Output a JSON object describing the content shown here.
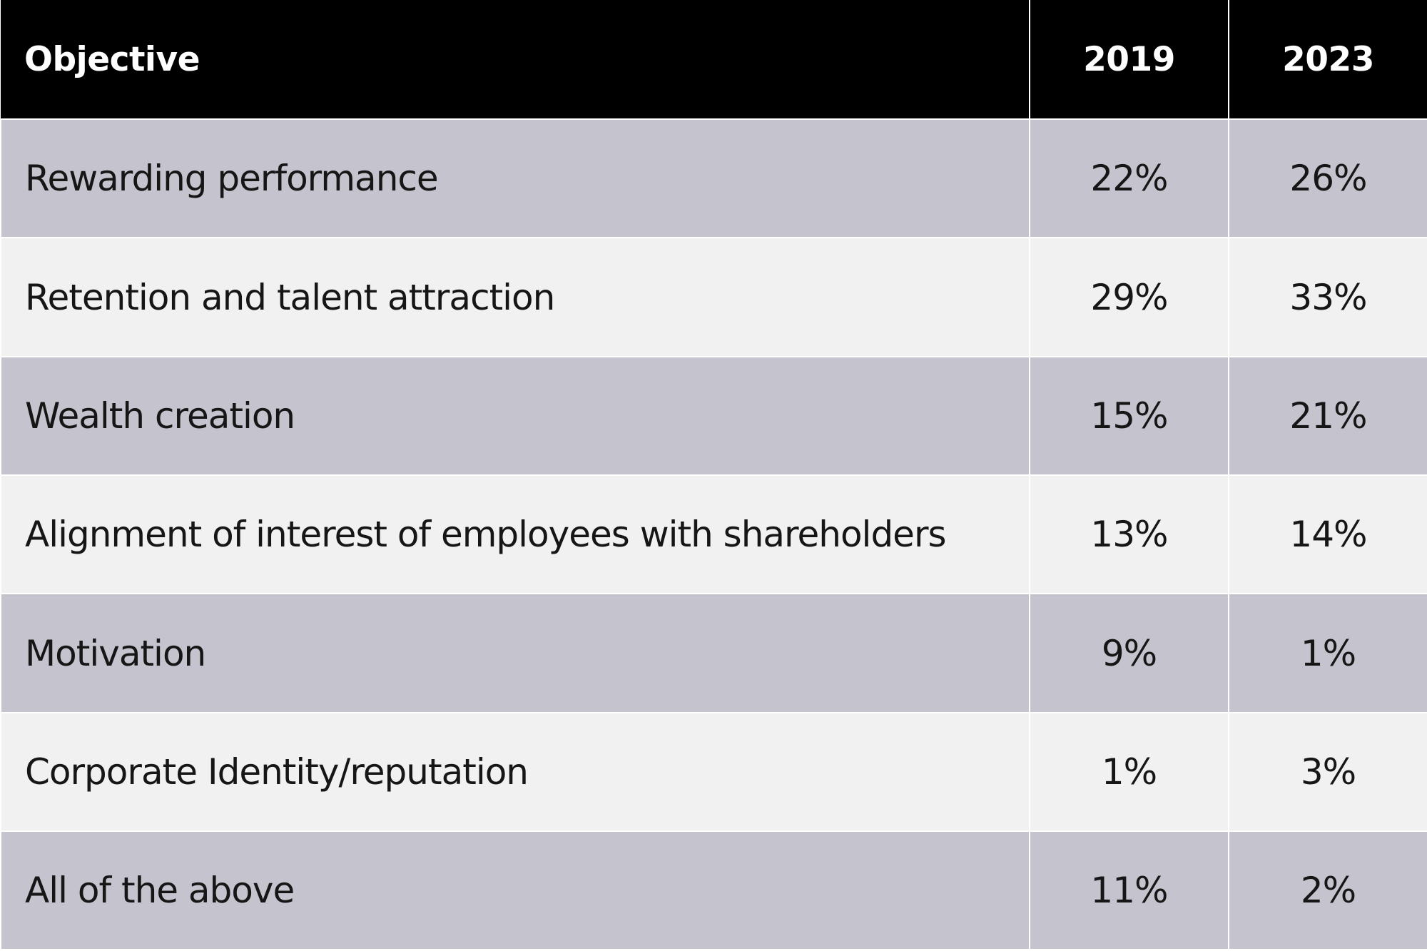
{
  "colors": {
    "header_bg": "#000000",
    "header_text": "#ffffff",
    "row_dark": "#c5c4ce",
    "row_light": "#f1f1f1",
    "body_text": "#161616",
    "divider": "#ffffff"
  },
  "table": {
    "header": {
      "objective": "Objective",
      "year_2019": "2019",
      "year_2023": "2023"
    },
    "rows": [
      {
        "objective": "Rewarding performance",
        "y2019": "22%",
        "y2023": "26%"
      },
      {
        "objective": "Retention and talent attraction",
        "y2019": "29%",
        "y2023": "33%"
      },
      {
        "objective": "Wealth creation",
        "y2019": "15%",
        "y2023": "21%"
      },
      {
        "objective": "Alignment of interest of employees with shareholders",
        "y2019": "13%",
        "y2023": "14%"
      },
      {
        "objective": "Motivation",
        "y2019": "9%",
        "y2023": "1%"
      },
      {
        "objective": "Corporate Identity/reputation",
        "y2019": "1%",
        "y2023": "3%"
      },
      {
        "objective": "All of the above",
        "y2019": "11%",
        "y2023": "2%"
      }
    ]
  },
  "chart_data": {
    "type": "table",
    "title": "",
    "columns": [
      "Objective",
      "2019",
      "2023"
    ],
    "rows": [
      [
        "Rewarding performance",
        "22%",
        "26%"
      ],
      [
        "Retention and talent attraction",
        "29%",
        "33%"
      ],
      [
        "Wealth creation",
        "15%",
        "21%"
      ],
      [
        "Alignment of interest of employees with shareholders",
        "13%",
        "14%"
      ],
      [
        "Motivation",
        "9%",
        "1%"
      ],
      [
        "Corporate Identity/reputation",
        "1%",
        "3%"
      ],
      [
        "All of the above",
        "11%",
        "2%"
      ]
    ],
    "layout": {
      "header_style": "black-bar-white-text",
      "row_striping": [
        "#c5c4ce",
        "#f1f1f1"
      ],
      "value_alignment": "center",
      "label_alignment": "left"
    }
  }
}
